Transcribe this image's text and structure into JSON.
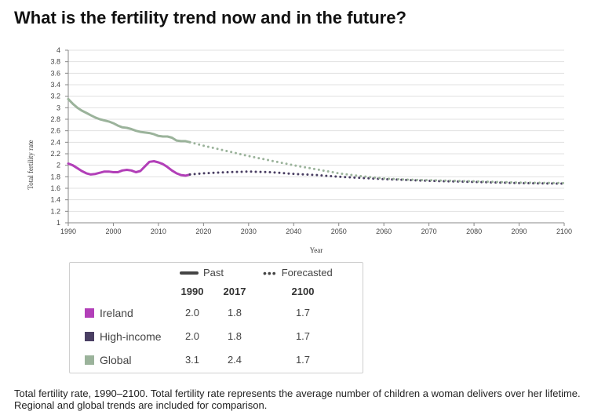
{
  "title": "What is the fertility trend now and in the future?",
  "chart_data": {
    "type": "line",
    "xlabel": "Year",
    "ylabel": "Total fertility rate",
    "xlim": [
      1990,
      2100
    ],
    "ylim": [
      1,
      4
    ],
    "x_ticks": [
      "1990",
      "2000",
      "2010",
      "2020",
      "2030",
      "2040",
      "2050",
      "2060",
      "2070",
      "2080",
      "2090",
      "2100"
    ],
    "y_ticks": [
      "1",
      "1.2",
      "1.4",
      "1.6",
      "1.8",
      "2",
      "2.2",
      "2.4",
      "2.6",
      "2.8",
      "3",
      "3.2",
      "3.4",
      "3.6",
      "3.8",
      "4"
    ],
    "grid": "horizontal",
    "series": [
      {
        "name": "Ireland",
        "color": "#b23fb8",
        "past": [
          [
            1990,
            2.03
          ],
          [
            1991,
            2.0
          ],
          [
            1992,
            1.95
          ],
          [
            1993,
            1.9
          ],
          [
            1994,
            1.86
          ],
          [
            1995,
            1.84
          ],
          [
            1996,
            1.85
          ],
          [
            1997,
            1.87
          ],
          [
            1998,
            1.89
          ],
          [
            1999,
            1.89
          ],
          [
            2000,
            1.88
          ],
          [
            2001,
            1.88
          ],
          [
            2002,
            1.91
          ],
          [
            2003,
            1.92
          ],
          [
            2004,
            1.91
          ],
          [
            2005,
            1.88
          ],
          [
            2006,
            1.9
          ],
          [
            2007,
            1.98
          ],
          [
            2008,
            2.06
          ],
          [
            2009,
            2.07
          ],
          [
            2010,
            2.05
          ],
          [
            2011,
            2.02
          ],
          [
            2012,
            1.97
          ],
          [
            2013,
            1.91
          ],
          [
            2014,
            1.86
          ],
          [
            2015,
            1.83
          ],
          [
            2016,
            1.82
          ],
          [
            2017,
            1.84
          ]
        ]
      },
      {
        "name": "High-income",
        "color": "#4a3f63",
        "forecast": [
          [
            2017,
            1.84
          ],
          [
            2020,
            1.86
          ],
          [
            2025,
            1.88
          ],
          [
            2030,
            1.89
          ],
          [
            2035,
            1.88
          ],
          [
            2040,
            1.85
          ],
          [
            2045,
            1.83
          ],
          [
            2050,
            1.8
          ],
          [
            2055,
            1.78
          ],
          [
            2060,
            1.76
          ],
          [
            2070,
            1.73
          ],
          [
            2080,
            1.71
          ],
          [
            2090,
            1.69
          ],
          [
            2100,
            1.68
          ]
        ]
      },
      {
        "name": "Global",
        "color": "#9bb39b",
        "past": [
          [
            1990,
            3.15
          ],
          [
            1991,
            3.07
          ],
          [
            1992,
            3.0
          ],
          [
            1993,
            2.95
          ],
          [
            1994,
            2.91
          ],
          [
            1995,
            2.87
          ],
          [
            1996,
            2.83
          ],
          [
            1997,
            2.8
          ],
          [
            1998,
            2.78
          ],
          [
            1999,
            2.76
          ],
          [
            2000,
            2.73
          ],
          [
            2001,
            2.69
          ],
          [
            2002,
            2.66
          ],
          [
            2003,
            2.65
          ],
          [
            2004,
            2.63
          ],
          [
            2005,
            2.6
          ],
          [
            2006,
            2.58
          ],
          [
            2007,
            2.57
          ],
          [
            2008,
            2.56
          ],
          [
            2009,
            2.54
          ],
          [
            2010,
            2.51
          ],
          [
            2011,
            2.5
          ],
          [
            2012,
            2.5
          ],
          [
            2013,
            2.48
          ],
          [
            2014,
            2.43
          ],
          [
            2015,
            2.42
          ],
          [
            2016,
            2.42
          ],
          [
            2017,
            2.4
          ]
        ],
        "forecast": [
          [
            2017,
            2.4
          ],
          [
            2020,
            2.34
          ],
          [
            2025,
            2.25
          ],
          [
            2030,
            2.16
          ],
          [
            2035,
            2.08
          ],
          [
            2040,
            2.0
          ],
          [
            2045,
            1.93
          ],
          [
            2050,
            1.86
          ],
          [
            2055,
            1.81
          ],
          [
            2060,
            1.77
          ],
          [
            2065,
            1.75
          ],
          [
            2070,
            1.74
          ],
          [
            2080,
            1.72
          ],
          [
            2090,
            1.7
          ],
          [
            2100,
            1.69
          ]
        ]
      }
    ]
  },
  "legend": {
    "past_label": "Past",
    "forecast_label": "Forecasted",
    "columns": [
      "1990",
      "2017",
      "2100"
    ],
    "rows": [
      {
        "name": "Ireland",
        "color": "#b23fb8",
        "v1990": "2.0",
        "v2017": "1.8",
        "v2100": "1.7"
      },
      {
        "name": "High-income",
        "color": "#4a3f63",
        "v1990": "2.0",
        "v2017": "1.8",
        "v2100": "1.7"
      },
      {
        "name": "Global",
        "color": "#9bb39b",
        "v1990": "3.1",
        "v2017": "2.4",
        "v2100": "1.7"
      }
    ]
  },
  "caption": "Total fertility rate, 1990–2100. Total fertility rate represents the average number of children a woman delivers over her lifetime. Regional and global trends are included for comparison."
}
